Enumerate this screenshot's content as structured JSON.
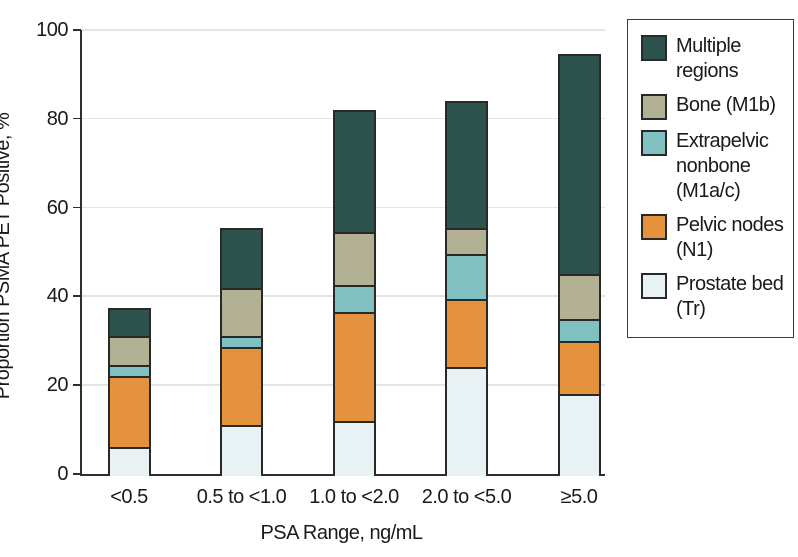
{
  "chart_data": {
    "type": "bar",
    "variant": "stacked",
    "title": "",
    "xlabel": "PSA Range, ng/mL",
    "ylabel": "Proportion PSMA PET Positive, %",
    "ylim": [
      0,
      100
    ],
    "yticks": [
      0,
      20,
      40,
      60,
      80,
      100
    ],
    "grid": "horizontal light-gray lines at each y tick, on",
    "legend_position": "outside top-right, boxed, items listed top-to-bottom in reverse stacking order",
    "categories": [
      "<0.5",
      "0.5 to <1.0",
      "1.0 to <2.0",
      "2.0 to <5.0",
      "≥5.0"
    ],
    "series": [
      {
        "name": "Prostate bed (Tr)",
        "color": "#e8f1f3",
        "values": [
          6,
          11,
          12,
          24,
          18
        ]
      },
      {
        "name": "Pelvic nodes (N1)",
        "color": "#e5923d",
        "values": [
          16,
          17.5,
          24.5,
          15.5,
          12
        ]
      },
      {
        "name": "Extrapelvic nonbone (M1a/c)",
        "color": "#80c0c1",
        "values": [
          2.5,
          2.5,
          6,
          10,
          5
        ]
      },
      {
        "name": "Bone (M1b)",
        "color": "#b2b194",
        "values": [
          6.5,
          11,
          12,
          6,
          10
        ]
      },
      {
        "name": "Multiple regions",
        "color": "#2d524e",
        "values": [
          6.5,
          13.5,
          27.5,
          28.5,
          49.5
        ]
      }
    ],
    "stack_totals": [
      37.5,
      55.5,
      82,
      84,
      94.5
    ]
  },
  "colors": {
    "background": "#ffffff",
    "axis": "#2e2e2e",
    "bar_border": "#27292a",
    "gridline": "#e4e4e4",
    "text": "#1a1a1a",
    "legend_border": "#3a3a3a"
  }
}
